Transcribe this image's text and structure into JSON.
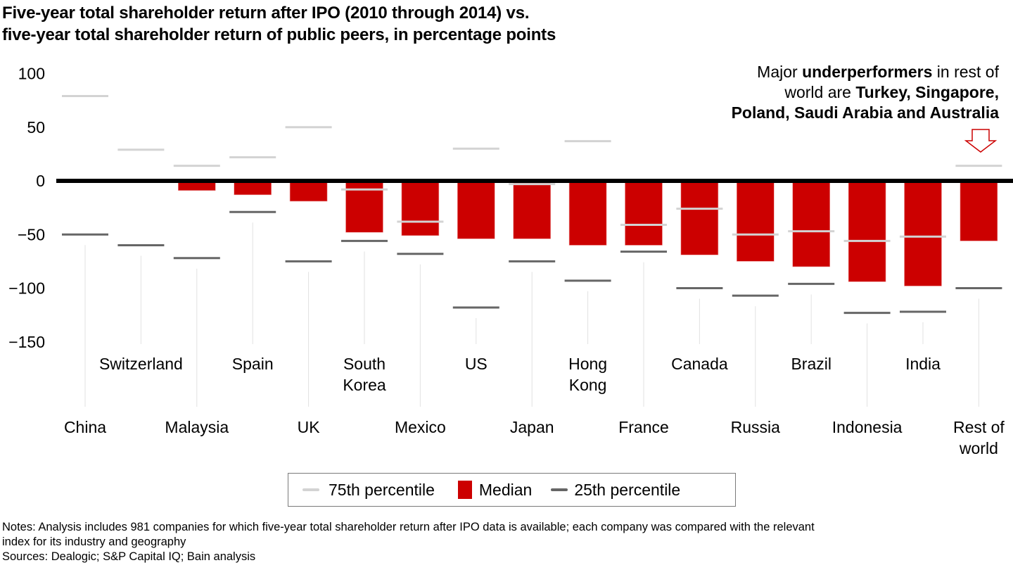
{
  "title_lines": [
    "Five-year total shareholder return after IPO (2010 through 2014) vs.",
    "five-year total shareholder return of public peers, in percentage points"
  ],
  "annotation": {
    "parts_line1": [
      {
        "text": "Major ",
        "bold": false
      },
      {
        "text": "underperformers",
        "bold": true
      },
      {
        "text": " in rest of",
        "bold": false
      }
    ],
    "parts_line2": [
      {
        "text": "world are ",
        "bold": false
      },
      {
        "text": "Turkey, Singapore,",
        "bold": true
      }
    ],
    "parts_line3": [
      {
        "text": "Poland, Saudi Arabia and Australia",
        "bold": true
      }
    ],
    "arrow_icon": "down-arrow-outline"
  },
  "legend": {
    "p75_label": "75th percentile",
    "median_label": "Median",
    "p25_label": "25th percentile"
  },
  "notes": {
    "line1": "Notes: Analysis includes 981 companies for which five-year total shareholder return after IPO data is available; each company was compared with the relevant",
    "line2": "index for its industry and geography",
    "sources": "Sources: Dealogic; S&P Capital IQ; Bain analysis"
  },
  "colors": {
    "median": "#cc0000",
    "p75": "#d3d3d3",
    "p25": "#666666",
    "zero_line": "#000000",
    "leader": "#e2e2e2",
    "arrow": "#cc0000"
  },
  "chart_data": {
    "type": "bar",
    "title": "Five-year total shareholder return after IPO (2010 through 2014) vs. five-year total shareholder return of public peers, in percentage points",
    "xlabel": "",
    "ylabel": "",
    "ylim": [
      -150,
      100
    ],
    "yticks": [
      100,
      50,
      0,
      -50,
      -100,
      -150
    ],
    "ytick_labels": [
      "100",
      "50",
      "0",
      "−50",
      "−100",
      "−150"
    ],
    "grid": false,
    "legend_position": "bottom-center",
    "categories": [
      "China",
      "Switzerland",
      "Malaysia",
      "Spain",
      "UK",
      "South Korea",
      "Mexico",
      "US",
      "Japan",
      "Hong Kong",
      "France",
      "Canada",
      "Russia",
      "Brazil",
      "Indonesia",
      "India",
      "Rest of world"
    ],
    "category_label_lines": [
      [
        "China"
      ],
      [
        "Switzerland"
      ],
      [
        "Malaysia"
      ],
      [
        "Spain"
      ],
      [
        "UK"
      ],
      [
        "South",
        "Korea"
      ],
      [
        "Mexico"
      ],
      [
        "US"
      ],
      [
        "Japan"
      ],
      [
        "Hong",
        "Kong"
      ],
      [
        "France"
      ],
      [
        "Canada"
      ],
      [
        "Russia"
      ],
      [
        "Brazil"
      ],
      [
        "Indonesia"
      ],
      [
        "India"
      ],
      [
        "Rest of",
        "world"
      ]
    ],
    "series": [
      {
        "name": "75th percentile",
        "style": "tick",
        "values": [
          79,
          29,
          14,
          22,
          50,
          -8,
          -38,
          30,
          -3,
          37,
          -41,
          -26,
          -50,
          -47,
          -56,
          -52,
          14
        ]
      },
      {
        "name": "Median",
        "style": "bar",
        "values": [
          0,
          0,
          -9,
          -13,
          -19,
          -48,
          -51,
          -54,
          -54,
          -60,
          -60,
          -69,
          -75,
          -80,
          -94,
          -98,
          -56
        ]
      },
      {
        "name": "25th percentile",
        "style": "tick",
        "values": [
          -50,
          -60,
          -72,
          -29,
          -75,
          -56,
          -68,
          -118,
          -75,
          -93,
          -66,
          -100,
          -107,
          -96,
          -123,
          -122,
          -100
        ]
      }
    ],
    "annotation": "Major underperformers in rest of world are Turkey, Singapore, Poland, Saudi Arabia and Australia"
  }
}
